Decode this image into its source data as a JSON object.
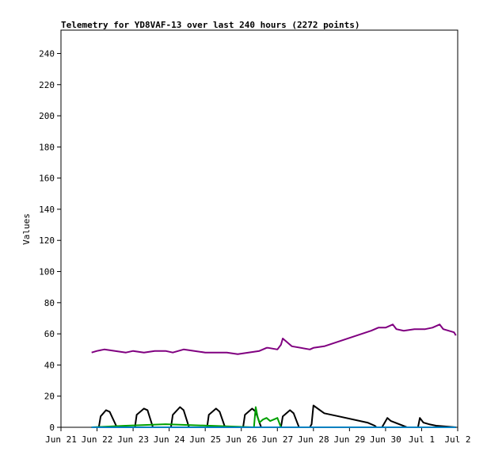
{
  "chart_data": {
    "type": "line",
    "title": "Telemetry for YD8VAF-13 over last 240 hours (2272 points)",
    "xlabel": "",
    "ylabel": "Values",
    "ylim": [
      0,
      255
    ],
    "xlim": [
      0,
      11
    ],
    "yticks": [
      0,
      20,
      40,
      60,
      80,
      100,
      120,
      140,
      160,
      180,
      200,
      220,
      240
    ],
    "xticks": [
      {
        "x": 0,
        "label": "Jun 21"
      },
      {
        "x": 1,
        "label": "Jun 22"
      },
      {
        "x": 2,
        "label": "Jun 23"
      },
      {
        "x": 3,
        "label": "Jun 24"
      },
      {
        "x": 4,
        "label": "Jun 25"
      },
      {
        "x": 5,
        "label": "Jun 26"
      },
      {
        "x": 6,
        "label": "Jun 27"
      },
      {
        "x": 7,
        "label": "Jun 28"
      },
      {
        "x": 8,
        "label": "Jun 29"
      },
      {
        "x": 9,
        "label": "Jun 30"
      },
      {
        "x": 10,
        "label": "Jul 1"
      },
      {
        "x": 11,
        "label": "Jul 2"
      }
    ],
    "grid": false,
    "legend": "none",
    "series": [
      {
        "color": "#800080",
        "x": [
          0.85,
          1.0,
          1.2,
          1.5,
          1.8,
          2.0,
          2.3,
          2.6,
          2.9,
          3.1,
          3.4,
          3.7,
          4.0,
          4.3,
          4.6,
          4.9,
          5.2,
          5.5,
          5.7,
          5.75,
          6.0,
          6.1,
          6.15,
          6.4,
          6.9,
          7.0,
          7.3,
          8.6,
          8.8,
          9.0,
          9.1,
          9.2,
          9.3,
          9.5,
          9.8,
          10.1,
          10.3,
          10.5,
          10.6,
          10.9,
          10.95
        ],
        "y": [
          48,
          49,
          50,
          49,
          48,
          49,
          48,
          49,
          49,
          48,
          50,
          49,
          48,
          48,
          48,
          47,
          48,
          49,
          51,
          51,
          50,
          53,
          57,
          52,
          50,
          51,
          52,
          62,
          64,
          64,
          65,
          66,
          63,
          62,
          63,
          63,
          64,
          66,
          63,
          61,
          59
        ]
      },
      {
        "color": "#000000",
        "x": [
          0.85,
          1.05,
          1.1,
          1.25,
          1.35,
          1.55,
          1.9,
          2.05,
          2.1,
          2.3,
          2.4,
          2.55,
          2.95,
          3.05,
          3.1,
          3.3,
          3.4,
          3.55,
          3.95,
          4.05,
          4.1,
          4.3,
          4.4,
          4.55,
          4.95,
          5.05,
          5.1,
          5.3,
          5.4,
          5.55,
          5.95,
          6.1,
          6.15,
          6.35,
          6.45,
          6.6,
          6.9,
          6.95,
          7.0,
          7.3,
          7.7,
          8.5,
          8.7,
          8.75,
          8.9,
          9.05,
          9.15,
          9.6,
          9.9,
          9.95,
          10.05,
          10.2,
          10.4,
          10.95
        ],
        "y": [
          0,
          0,
          7,
          11,
          10,
          0,
          0,
          0,
          8,
          12,
          11,
          0,
          0,
          0,
          8,
          13,
          11,
          0,
          0,
          0,
          8,
          12,
          10,
          0,
          0,
          0,
          8,
          12,
          10,
          0,
          0,
          0,
          7,
          11,
          9,
          0,
          0,
          2,
          14,
          9,
          7,
          3,
          1,
          0,
          0,
          6,
          4,
          0,
          0,
          6,
          3,
          2,
          1,
          0
        ]
      },
      {
        "color": "#00a000",
        "x": [
          0.85,
          1.8,
          2.9,
          5.35,
          5.4,
          5.45,
          5.5,
          5.6,
          5.7,
          5.8,
          5.9,
          6.0,
          6.1,
          8.0,
          10.9
        ],
        "y": [
          0,
          1,
          2,
          0,
          13,
          7,
          3,
          5,
          6,
          4,
          5,
          6,
          0,
          0,
          0
        ]
      },
      {
        "color": "#0080c0",
        "x": [
          0.85,
          10.95
        ],
        "y": [
          0,
          0
        ]
      }
    ]
  }
}
